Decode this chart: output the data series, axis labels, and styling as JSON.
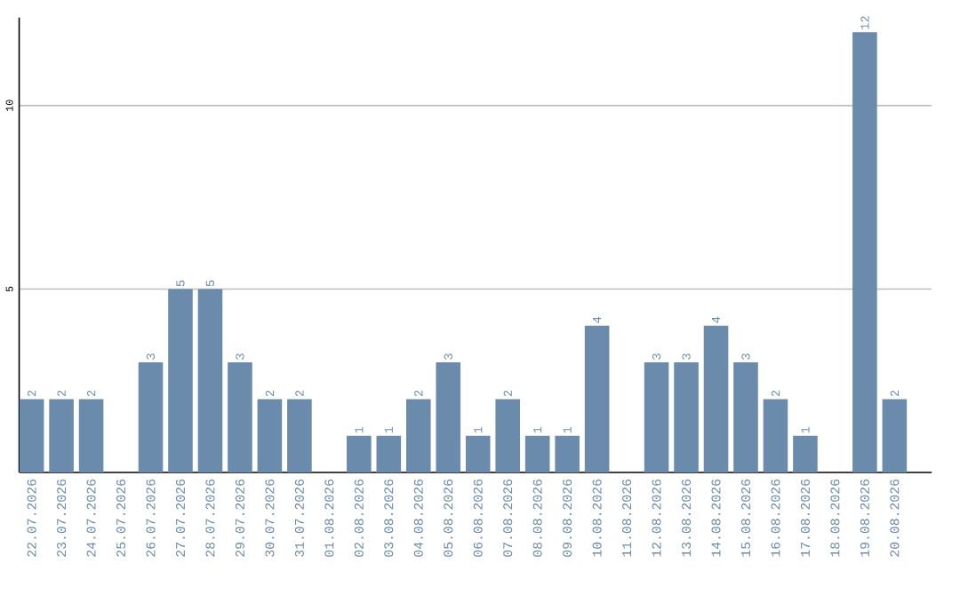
{
  "chart_data": {
    "type": "bar",
    "categories": [
      "22.07.2026",
      "23.07.2026",
      "24.07.2026",
      "25.07.2026",
      "26.07.2026",
      "27.07.2026",
      "28.07.2026",
      "29.07.2026",
      "30.07.2026",
      "31.07.2026",
      "01.08.2026",
      "02.08.2026",
      "03.08.2026",
      "04.08.2026",
      "05.08.2026",
      "06.08.2026",
      "07.08.2026",
      "08.08.2026",
      "09.08.2026",
      "10.08.2026",
      "11.08.2026",
      "12.08.2026",
      "13.08.2026",
      "14.08.2026",
      "15.08.2026",
      "16.08.2026",
      "17.08.2026",
      "18.08.2026",
      "19.08.2026",
      "20.08.2026"
    ],
    "values": [
      2,
      2,
      2,
      0,
      3,
      5,
      5,
      3,
      2,
      2,
      0,
      1,
      1,
      2,
      3,
      1,
      2,
      1,
      1,
      4,
      0,
      3,
      3,
      4,
      3,
      2,
      1,
      0,
      12,
      2
    ],
    "value_labels": [
      "2",
      "2",
      "2",
      null,
      "3",
      "5",
      "5",
      "3",
      "2",
      "2",
      null,
      "1",
      "1",
      "2",
      "3",
      "1",
      "2",
      "1",
      "1",
      "4",
      null,
      "3",
      "3",
      "4",
      "3",
      "2",
      "1",
      null,
      "12",
      "2"
    ],
    "color": "#6a8bab",
    "ylim": [
      0,
      12.4
    ],
    "yticks": [
      5,
      10
    ],
    "grid": "y"
  }
}
